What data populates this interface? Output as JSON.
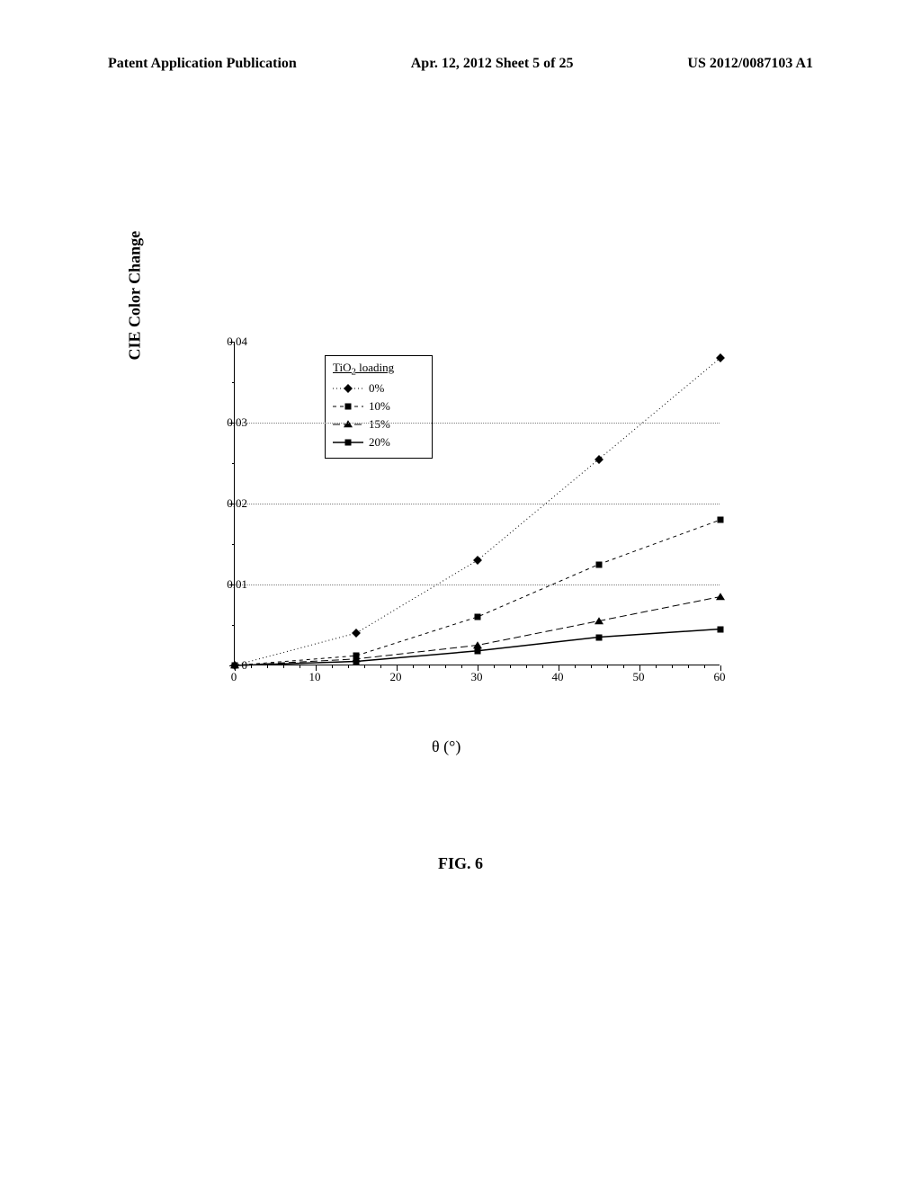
{
  "header": {
    "left": "Patent Application Publication",
    "center": "Apr. 12, 2012  Sheet 5 of 25",
    "right": "US 2012/0087103 A1"
  },
  "chart": {
    "type": "line",
    "title": "",
    "y_label": "CIE Color Change",
    "x_label": "θ (°)",
    "xlim": [
      0,
      60
    ],
    "ylim": [
      0,
      0.04
    ],
    "x_ticks_major": [
      0,
      10,
      20,
      30,
      40,
      50,
      60
    ],
    "x_ticks_minor_step": 2,
    "y_ticks_major": [
      0,
      0.01,
      0.02,
      0.03,
      0.04
    ],
    "y_ticks_labels": [
      "0",
      "0.01",
      "0.02",
      "0.03",
      "0.04"
    ],
    "y_ticks_minor_step": 0.005,
    "grid_y_values": [
      0.01,
      0.02,
      0.03
    ],
    "grid_color": "#808080",
    "background_color": "#ffffff",
    "axis_color": "#000000",
    "legend": {
      "title": "TiO₂ loading",
      "entries": [
        {
          "label": "0%",
          "dash": "dotted",
          "marker": "diamond"
        },
        {
          "label": "10%",
          "dash": "dashed-medium",
          "marker": "square"
        },
        {
          "label": "15%",
          "dash": "dashed-long",
          "marker": "triangle"
        },
        {
          "label": "20%",
          "dash": "solid",
          "marker": "square"
        }
      ]
    },
    "series": [
      {
        "name": "0%",
        "dash": "1,3",
        "marker": "diamond",
        "color": "#000000",
        "points": [
          [
            0,
            0
          ],
          [
            15,
            0.004
          ],
          [
            30,
            0.013
          ],
          [
            45,
            0.0255
          ],
          [
            60,
            0.038
          ]
        ]
      },
      {
        "name": "10%",
        "dash": "4,4",
        "marker": "square",
        "color": "#000000",
        "points": [
          [
            0,
            0
          ],
          [
            15,
            0.0012
          ],
          [
            30,
            0.006
          ],
          [
            45,
            0.0125
          ],
          [
            60,
            0.018
          ]
        ]
      },
      {
        "name": "15%",
        "dash": "8,4",
        "marker": "triangle",
        "color": "#000000",
        "points": [
          [
            0,
            0
          ],
          [
            15,
            0.0008
          ],
          [
            30,
            0.0025
          ],
          [
            45,
            0.0055
          ],
          [
            60,
            0.0085
          ]
        ]
      },
      {
        "name": "20%",
        "dash": "solid",
        "marker": "square",
        "color": "#000000",
        "points": [
          [
            0,
            0
          ],
          [
            15,
            0.0005
          ],
          [
            30,
            0.0018
          ],
          [
            45,
            0.0035
          ],
          [
            60,
            0.0045
          ]
        ]
      }
    ]
  },
  "figure_caption": "FIG. 6"
}
